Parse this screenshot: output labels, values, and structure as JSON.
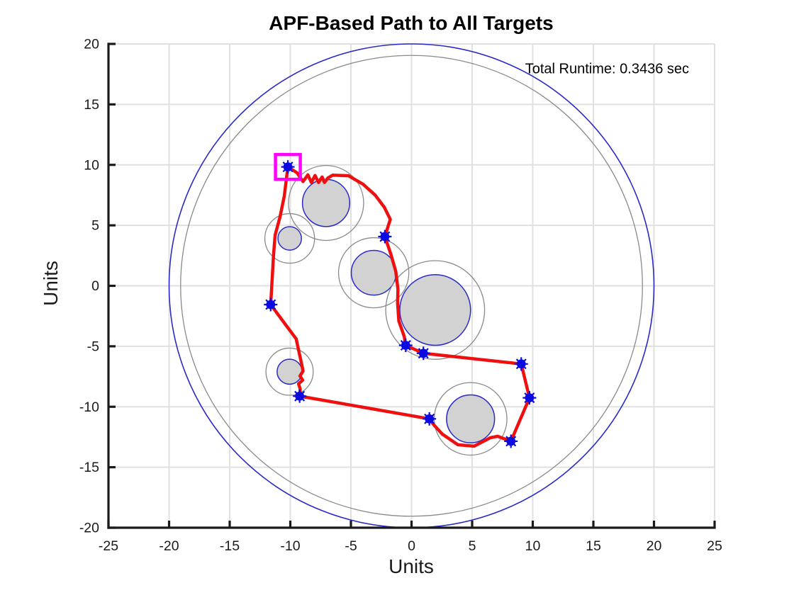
{
  "chart_data": {
    "type": "line",
    "title": "APF-Based Path to All Targets",
    "annotation": "Total Runtime: 0.3436 sec",
    "xlabel": "Units",
    "ylabel": "Units",
    "xlim": [
      -25,
      25
    ],
    "ylim": [
      -20,
      20
    ],
    "xticks": [
      -25,
      -20,
      -15,
      -10,
      -5,
      0,
      5,
      10,
      15,
      20,
      25
    ],
    "yticks": [
      -20,
      -15,
      -10,
      -5,
      0,
      5,
      10,
      15,
      20
    ],
    "grid": true,
    "legend": "none",
    "colors": {
      "path": "#f00f0f",
      "marker": "#0a0ae0",
      "start_box": "#ff00ff",
      "obstacle_fill": "#d2d2d2",
      "obstacle_edge": "#2a2ac8",
      "influence_edge": "#8a8a8a",
      "boundary_outer": "#2a2ac8",
      "boundary_inner": "#8a8a8a",
      "grid_line": "#e0e0e0",
      "axis": "#1a1a1a"
    },
    "boundary_circles": [
      {
        "name": "workspace-outer-boundary",
        "cx": 0,
        "cy": 0,
        "r": 20
      },
      {
        "name": "workspace-inner-boundary",
        "cx": 0,
        "cy": 0,
        "r": 19.05
      }
    ],
    "obstacles": [
      {
        "cx": -7.05,
        "cy": 6.85,
        "r": 1.95,
        "influence_r": 3.1
      },
      {
        "cx": -10.05,
        "cy": 3.92,
        "r": 0.97,
        "influence_r": 2.05
      },
      {
        "cx": -3.12,
        "cy": 1.08,
        "r": 1.85,
        "influence_r": 2.9
      },
      {
        "cx": 1.95,
        "cy": -2.0,
        "r": 2.92,
        "influence_r": 4.08
      },
      {
        "cx": -10.06,
        "cy": -7.1,
        "r": 1.03,
        "influence_r": 1.95
      },
      {
        "cx": 4.87,
        "cy": -11.0,
        "r": 1.98,
        "influence_r": 3.0
      }
    ],
    "start": [
      -10.2,
      9.83
    ],
    "targets": [
      [
        -2.2,
        4.07
      ],
      [
        -0.48,
        -4.92
      ],
      [
        0.98,
        -5.58
      ],
      [
        9.05,
        -6.46
      ],
      [
        9.73,
        -9.26
      ],
      [
        8.2,
        -12.85
      ],
      [
        1.47,
        -11.0
      ],
      [
        -9.23,
        -9.12
      ],
      [
        -11.62,
        -1.55
      ]
    ],
    "path": [
      [
        -10.2,
        9.83
      ],
      [
        -9.45,
        9.35
      ],
      [
        -8.95,
        8.62
      ],
      [
        -8.55,
        9.18
      ],
      [
        -8.26,
        8.54
      ],
      [
        -7.96,
        9.12
      ],
      [
        -7.67,
        8.54
      ],
      [
        -7.38,
        9.0
      ],
      [
        -7.18,
        8.54
      ],
      [
        -6.9,
        8.92
      ],
      [
        -6.5,
        9.15
      ],
      [
        -5.2,
        9.1
      ],
      [
        -4.0,
        8.4
      ],
      [
        -3.0,
        7.5
      ],
      [
        -2.25,
        6.5
      ],
      [
        -1.75,
        5.5
      ],
      [
        -2.2,
        4.07
      ],
      [
        -1.7,
        2.6
      ],
      [
        -1.3,
        1.2
      ],
      [
        -1.12,
        -0.3
      ],
      [
        -1.15,
        -1.4
      ],
      [
        -1.05,
        -2.9
      ],
      [
        -0.6,
        -4.2
      ],
      [
        -0.48,
        -4.92
      ],
      [
        0.98,
        -5.58
      ],
      [
        9.05,
        -6.46
      ],
      [
        9.73,
        -9.26
      ],
      [
        8.2,
        -12.85
      ],
      [
        7.09,
        -12.44
      ],
      [
        6.5,
        -12.56
      ],
      [
        5.16,
        -13.26
      ],
      [
        3.82,
        -13.14
      ],
      [
        2.54,
        -12.26
      ],
      [
        1.84,
        -11.5
      ],
      [
        1.47,
        -11.0
      ],
      [
        -9.23,
        -9.12
      ],
      [
        -9.18,
        -8.55
      ],
      [
        -9.32,
        -8.1
      ],
      [
        -8.98,
        -7.8
      ],
      [
        -9.2,
        -7.45
      ],
      [
        -8.95,
        -7.05
      ],
      [
        -9.03,
        -6.63
      ],
      [
        -9.52,
        -4.38
      ],
      [
        -10.4,
        -3.2
      ],
      [
        -11.62,
        -1.55
      ],
      [
        -11.5,
        0.5
      ],
      [
        -11.38,
        2.6
      ],
      [
        -11.25,
        4.2
      ],
      [
        -10.85,
        5.7
      ],
      [
        -10.5,
        7.4
      ],
      [
        -10.2,
        9.83
      ]
    ]
  }
}
